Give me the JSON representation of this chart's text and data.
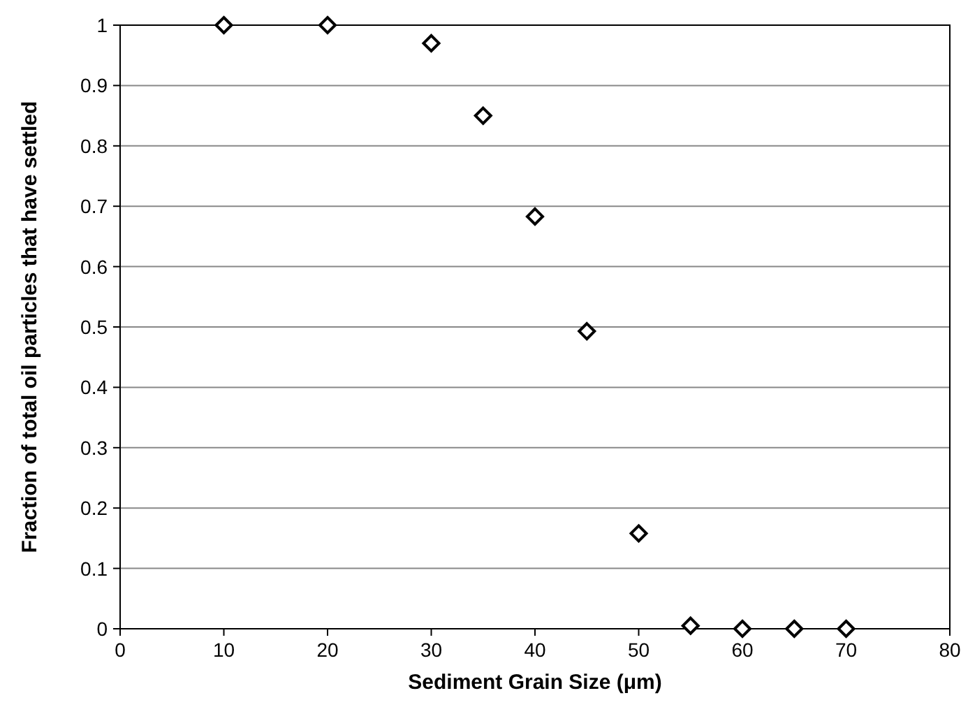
{
  "chart_data": {
    "type": "scatter",
    "xlabel": "Sediment Grain Size (μm)",
    "ylabel": "Fraction of total oil particles that have settled",
    "x": [
      10,
      20,
      30,
      35,
      40,
      45,
      50,
      55,
      60,
      65,
      70
    ],
    "values": [
      1,
      1,
      0.97,
      0.85,
      0.683,
      0.493,
      0.158,
      0.005,
      0,
      0,
      0
    ],
    "color": "#000000",
    "marker": "diamond",
    "grid": "y",
    "xlim": [
      0,
      80
    ],
    "xticks": [
      0,
      10,
      20,
      30,
      40,
      50,
      60,
      70,
      80
    ],
    "ylim": [
      0,
      1
    ],
    "yticks": [
      0,
      0.1,
      0.2,
      0.3,
      0.4,
      0.5,
      0.6,
      0.7,
      0.8,
      0.9,
      1
    ]
  }
}
